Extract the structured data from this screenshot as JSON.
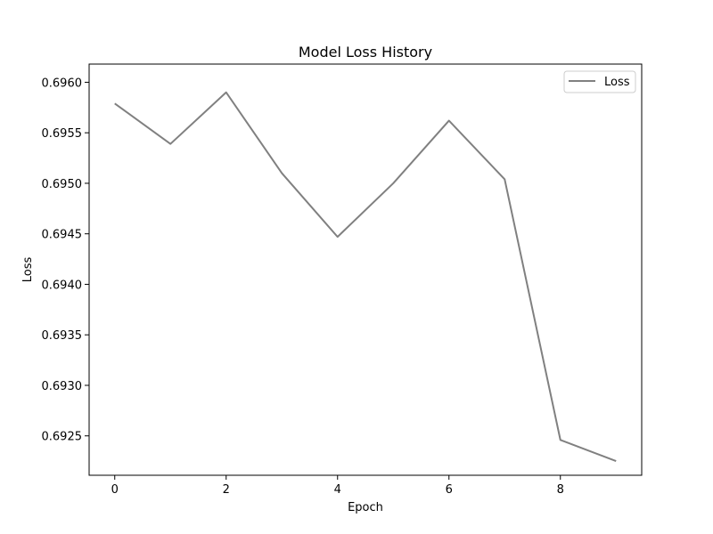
{
  "chart_data": {
    "type": "line",
    "title": "Model Loss History",
    "xlabel": "Epoch",
    "ylabel": "Loss",
    "xlim": [
      -0.46,
      9.46
    ],
    "ylim": [
      0.69211,
      0.69618
    ],
    "xticks": [
      0,
      2,
      4,
      6,
      8
    ],
    "xtick_labels": [
      "0",
      "2",
      "4",
      "6",
      "8"
    ],
    "yticks": [
      0.6925,
      0.693,
      0.6935,
      0.694,
      0.6945,
      0.695,
      0.6955,
      0.696
    ],
    "ytick_labels": [
      "0.6925",
      "0.6930",
      "0.6935",
      "0.6940",
      "0.6945",
      "0.6950",
      "0.6955",
      "0.6960"
    ],
    "grid": false,
    "legend_position": "top-right",
    "series": [
      {
        "name": "Loss",
        "color": "#808080",
        "x": [
          0,
          1,
          2,
          3,
          4,
          5,
          6,
          7,
          8,
          9
        ],
        "y": [
          0.69579,
          0.69539,
          0.6959,
          0.6951,
          0.69447,
          0.695,
          0.69562,
          0.69504,
          0.69246,
          0.69225
        ]
      }
    ]
  }
}
